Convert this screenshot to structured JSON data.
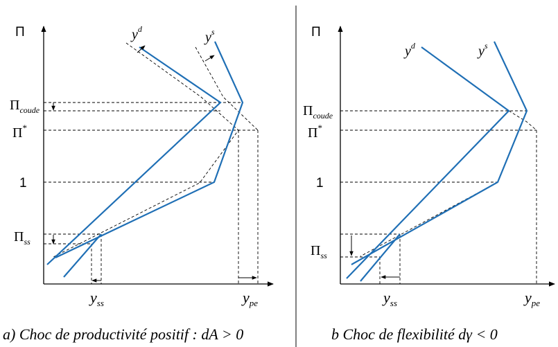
{
  "panel_a": {
    "axis_y": "Π",
    "pi_coude": "Π",
    "pi_coude_sub": "coude",
    "pi_star": "Π",
    "pi_star_sup": "*",
    "one": "1",
    "pi_ss": "Π",
    "pi_ss_sub": "ss",
    "yd": "y",
    "yd_sup": "d",
    "ys": "y",
    "ys_sup": "s",
    "yss": "y",
    "yss_sub": "ss",
    "ype": "y",
    "ype_sub": "pe",
    "caption": "a) Choc de productivité positif : dA > 0"
  },
  "panel_b": {
    "axis_y": "Π",
    "pi_coude": "Π",
    "pi_coude_sub": "coude",
    "pi_star": "Π",
    "pi_star_sup": "*",
    "one": "1",
    "pi_ss": "Π",
    "pi_ss_sub": "ss",
    "yd": "y",
    "yd_sup": "d",
    "ys": "y",
    "ys_sup": "s",
    "yss": "y",
    "yss_sub": "ss",
    "ype": "y",
    "ype_sub": "pe",
    "caption": "b  Choc de flexibilité  dγ < 0"
  },
  "colors": {
    "curve": "#1f6fb5",
    "axis": "#000000"
  }
}
